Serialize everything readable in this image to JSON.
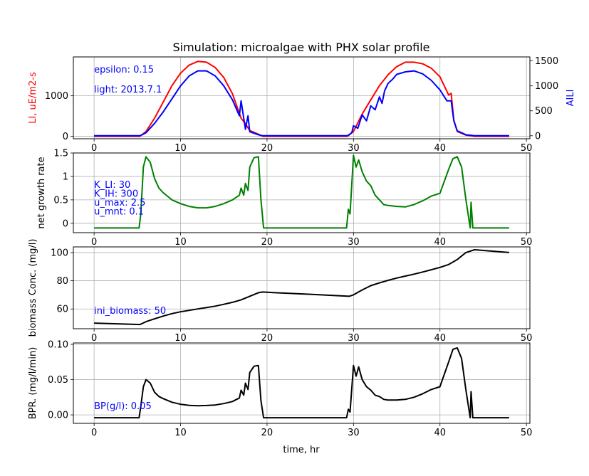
{
  "chart_data": {
    "title": "Simulation: microalgae with PHX solar profile",
    "xlabel": "time, hr",
    "shared_x": {
      "ticks": [
        0,
        10,
        20,
        30,
        40,
        50
      ],
      "xlim": [
        -2.4,
        50.4
      ]
    },
    "panels": [
      {
        "type": "line",
        "ylabel": "LI, uE/m2-s",
        "ylabel_color": "#ff0000",
        "ylabel2": "AILI",
        "ylabel2_color": "#0000ff",
        "ylim": [
          -60,
          1960
        ],
        "yticks": [
          0,
          1000
        ],
        "ylim2": [
          -60,
          1580
        ],
        "yticks2": [
          0,
          500,
          1000,
          1500
        ],
        "annotations": [
          {
            "text": "epsilon: 0.15",
            "x": 0,
            "y": 1570,
            "color": "#0000ff"
          },
          {
            "text": "light: 2013.7.1",
            "x": 0,
            "y": 1080,
            "color": "#0000ff"
          }
        ],
        "series": [
          {
            "name": "LI",
            "axis": "left",
            "color": "#ff0000",
            "x": [
              0,
              5.3,
              6,
              7,
              8,
              9,
              10,
              11,
              12,
              13,
              14,
              15,
              16,
              17,
              17.5,
              18,
              18.5,
              19,
              19.5,
              20,
              25,
              29.3,
              30,
              31,
              32,
              33,
              34,
              35,
              36,
              37,
              38,
              39,
              40,
              41,
              41.3,
              41.6,
              42,
              43,
              44,
              48
            ],
            "y": [
              0,
              0,
              120,
              450,
              850,
              1250,
              1560,
              1760,
              1850,
              1830,
              1700,
              1450,
              1050,
              450,
              310,
              140,
              100,
              50,
              0,
              0,
              0,
              0,
              120,
              550,
              900,
              1250,
              1520,
              1720,
              1830,
              1830,
              1790,
              1680,
              1470,
              1020,
              1060,
              400,
              120,
              30,
              0,
              0
            ]
          },
          {
            "name": "AILI",
            "axis": "right",
            "color": "#0000ff",
            "x": [
              0,
              5.3,
              6,
              7,
              8,
              9,
              10,
              11,
              12,
              13,
              14,
              15,
              16,
              16.8,
              17,
              17.5,
              17.8,
              18,
              18.5,
              19,
              19.5,
              20,
              25,
              29.3,
              29.8,
              30,
              30.5,
              31,
              31.5,
              32,
              32.5,
              33,
              33.3,
              33.6,
              34,
              34.5,
              35,
              36,
              37,
              38,
              39,
              40,
              40.8,
              41.3,
              41.6,
              42,
              43,
              44,
              48
            ],
            "y": [
              0,
              0,
              60,
              250,
              480,
              740,
              1000,
              1200,
              1300,
              1300,
              1200,
              1000,
              720,
              400,
              700,
              130,
              400,
              80,
              50,
              20,
              0,
              0,
              0,
              0,
              60,
              200,
              150,
              420,
              300,
              600,
              520,
              780,
              650,
              900,
              1050,
              1130,
              1230,
              1280,
              1300,
              1240,
              1110,
              920,
              700,
              700,
              300,
              100,
              20,
              0,
              0
            ]
          }
        ]
      },
      {
        "type": "line",
        "ylabel": "net growth rate",
        "ylim": [
          -0.2,
          1.5
        ],
        "yticks": [
          0.0,
          0.5,
          1.0,
          1.5
        ],
        "annotations": [
          {
            "text": "K_LI: 30",
            "x": 0,
            "y": 0.76,
            "color": "#0000ff"
          },
          {
            "text": "K_IH: 300",
            "x": 0,
            "y": 0.57,
            "color": "#0000ff"
          },
          {
            "text": "u_max: 2.5",
            "x": 0,
            "y": 0.38,
            "color": "#0000ff"
          },
          {
            "text": "u_mnt: 0.1",
            "x": 0,
            "y": 0.19,
            "color": "#0000ff"
          }
        ],
        "series": [
          {
            "name": "net growth rate",
            "color": "#008000",
            "x": [
              0,
              5.2,
              5.4,
              5.7,
              6,
              6.5,
              7,
              7.5,
              8,
              9,
              10,
              11,
              12,
              13,
              14,
              15,
              16,
              16.8,
              17,
              17.3,
              17.5,
              17.8,
              18,
              18.5,
              19,
              19.3,
              19.6,
              20,
              25,
              29.2,
              29.4,
              29.6,
              30,
              30.3,
              30.6,
              31,
              31.5,
              32,
              32.5,
              33,
              33.5,
              34,
              35,
              36,
              37,
              38,
              39,
              40,
              41,
              41.5,
              42,
              42.5,
              43,
              43.5,
              43.6,
              43.8,
              48
            ],
            "y": [
              -0.1,
              -0.1,
              0.2,
              1.2,
              1.42,
              1.3,
              0.95,
              0.75,
              0.65,
              0.5,
              0.42,
              0.36,
              0.33,
              0.33,
              0.36,
              0.42,
              0.5,
              0.6,
              0.75,
              0.6,
              0.85,
              0.7,
              1.2,
              1.4,
              1.42,
              0.5,
              -0.1,
              -0.1,
              -0.1,
              -0.1,
              0.3,
              0.2,
              1.45,
              1.2,
              1.35,
              1.1,
              0.9,
              0.8,
              0.6,
              0.5,
              0.4,
              0.38,
              0.36,
              0.35,
              0.4,
              0.48,
              0.58,
              0.64,
              1.15,
              1.38,
              1.42,
              1.2,
              0.5,
              -0.1,
              0.45,
              -0.1,
              -0.1
            ]
          }
        ]
      },
      {
        "type": "line",
        "ylabel": "biomass Conc. (mg/l)",
        "ylim": [
          46,
          104
        ],
        "yticks": [
          60,
          80,
          100
        ],
        "annotations": [
          {
            "text": "ini_biomass: 50",
            "x": 0,
            "y": 56.5,
            "color": "#0000ff"
          }
        ],
        "series": [
          {
            "name": "biomass",
            "color": "#000000",
            "x": [
              0,
              5.3,
              6,
              7,
              8,
              9,
              10,
              11,
              12,
              13,
              14,
              15,
              16,
              17,
              18,
              19,
              19.5,
              20,
              25,
              29.5,
              30,
              31,
              32,
              33,
              34,
              35,
              36,
              37,
              38,
              39,
              40,
              41,
              42,
              43,
              44,
              48
            ],
            "y": [
              50,
              49,
              51,
              53,
              55,
              56.7,
              58,
              59,
              60,
              61,
              62,
              63.3,
              64.7,
              66.5,
              69,
              71.5,
              72,
              71.8,
              70.4,
              69,
              70,
              73.5,
              76.5,
              78.5,
              80.3,
              81.9,
              83.3,
              84.7,
              86.2,
              87.8,
              89.5,
              91.5,
              95,
              100,
              102,
              100
            ]
          }
        ]
      },
      {
        "type": "line",
        "ylabel": "BPR. (mg/l/min)",
        "ylim": [
          -0.012,
          0.102
        ],
        "yticks": [
          0.0,
          0.05,
          0.1
        ],
        "ytick_labels": [
          "0.00",
          "0.05",
          "0.10"
        ],
        "annotations": [
          {
            "text": "BP(g/l): 0.05",
            "x": 0,
            "y": 0.008,
            "color": "#0000ff"
          }
        ],
        "series": [
          {
            "name": "BPR",
            "color": "#000000",
            "x": [
              0,
              5.2,
              5.4,
              5.7,
              6,
              6.5,
              7,
              7.5,
              8,
              9,
              10,
              11,
              12,
              13,
              14,
              15,
              16,
              16.8,
              17,
              17.3,
              17.5,
              17.8,
              18,
              18.5,
              19,
              19.3,
              19.6,
              20,
              25,
              29.2,
              29.4,
              29.6,
              30,
              30.3,
              30.6,
              31,
              31.5,
              32,
              32.5,
              33,
              33.5,
              34,
              35,
              36,
              37,
              38,
              39,
              40,
              41,
              41.5,
              42,
              42.5,
              43,
              43.5,
              43.6,
              43.8,
              48
            ],
            "y": [
              -0.004,
              -0.004,
              0.012,
              0.04,
              0.05,
              0.045,
              0.032,
              0.026,
              0.023,
              0.018,
              0.015,
              0.0135,
              0.013,
              0.0133,
              0.014,
              0.016,
              0.019,
              0.024,
              0.035,
              0.028,
              0.045,
              0.036,
              0.06,
              0.069,
              0.07,
              0.02,
              -0.004,
              -0.004,
              -0.004,
              -0.004,
              0.008,
              0.004,
              0.07,
              0.055,
              0.068,
              0.05,
              0.04,
              0.035,
              0.028,
              0.026,
              0.022,
              0.021,
              0.021,
              0.022,
              0.025,
              0.03,
              0.036,
              0.04,
              0.075,
              0.093,
              0.095,
              0.08,
              0.035,
              -0.004,
              0.033,
              -0.004,
              -0.004
            ]
          }
        ]
      }
    ]
  }
}
